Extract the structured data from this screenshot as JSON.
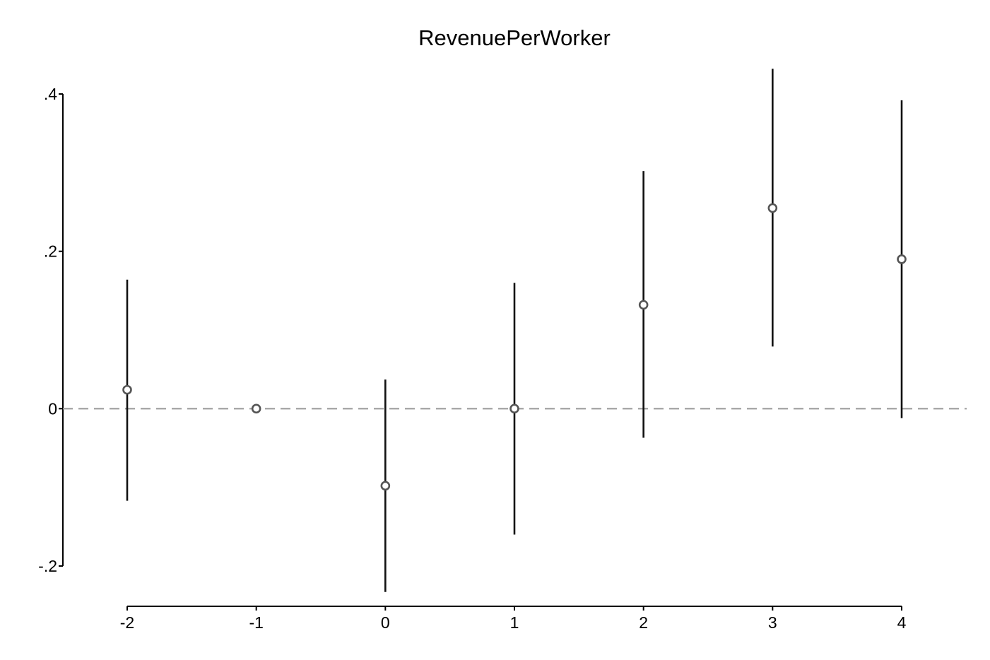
{
  "chart_data": {
    "type": "scatter",
    "title": "RevenuePerWorker",
    "xlabel": "",
    "ylabel": "",
    "x": [
      -2,
      -1,
      0,
      1,
      2,
      3,
      4
    ],
    "values": [
      0.024,
      0.0,
      -0.098,
      0.0,
      0.132,
      0.255,
      0.19
    ],
    "ci_lower": [
      -0.117,
      null,
      -0.233,
      -0.16,
      -0.037,
      0.079,
      -0.012
    ],
    "ci_upper": [
      0.164,
      null,
      0.037,
      0.16,
      0.302,
      0.432,
      0.392
    ],
    "xlim": [
      -2,
      4
    ],
    "ylim": [
      -0.2,
      0.4
    ],
    "x_ticks": [
      -2,
      -1,
      0,
      1,
      2,
      3,
      4
    ],
    "x_tick_labels": [
      "-2",
      "-1",
      "0",
      "1",
      "2",
      "3",
      "4"
    ],
    "y_ticks": [
      -0.2,
      0,
      0.2,
      0.4
    ],
    "y_tick_labels": [
      "-.2",
      "0",
      ".2",
      ".4"
    ],
    "reference_line": {
      "y": 0,
      "style": "dashed"
    },
    "grid": false,
    "legend": "none",
    "colors": {
      "marker": "#555555",
      "error_bar": "#111111",
      "reference_line": "#999999",
      "axis": "#000000"
    }
  }
}
